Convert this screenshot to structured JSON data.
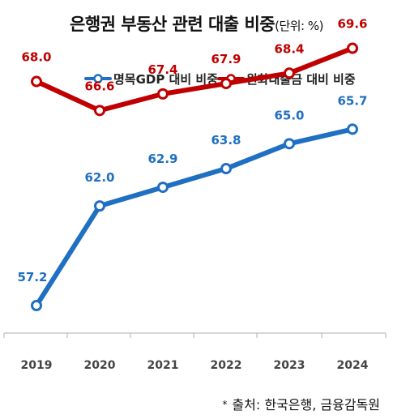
{
  "title": "은행권 부동산 관련 대출 비중",
  "unit": "(단위: %)",
  "source": "출처: 한국은행, 금융감독원",
  "source_marker": "*",
  "colors": {
    "blue": "#1f6fc2",
    "red": "#c00000",
    "axis": "#bfbfbf",
    "tick_text": "#444444"
  },
  "chart_data": {
    "type": "line",
    "x": [
      "2019",
      "2020",
      "2021",
      "2022",
      "2023",
      "2024"
    ],
    "series": [
      {
        "name": "명목GDP 대비 비중",
        "color": "#1f6fc2",
        "values": [
          57.2,
          62.0,
          62.9,
          63.8,
          65.0,
          65.7
        ]
      },
      {
        "name": "원화대출금 대비 비중",
        "color": "#c00000",
        "values": [
          68.0,
          66.6,
          67.4,
          67.9,
          68.4,
          69.6
        ]
      }
    ],
    "legend_position": "top",
    "grid": false
  }
}
